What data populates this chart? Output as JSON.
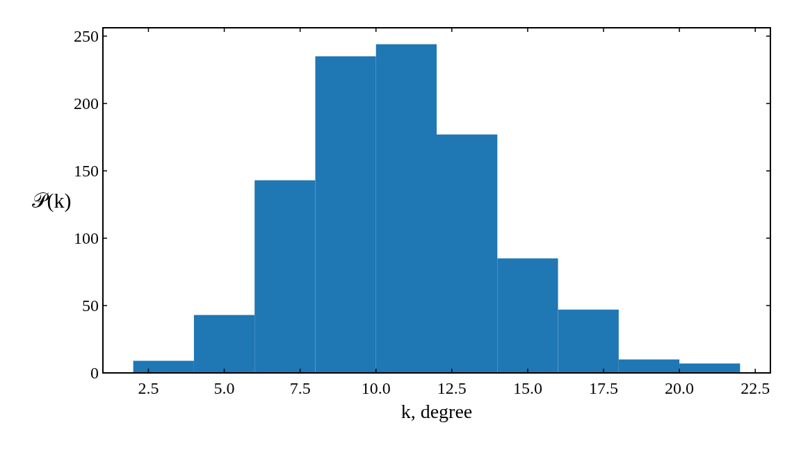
{
  "chart_data": {
    "type": "histogram",
    "xlabel": "k, degree",
    "ylabel": "𝒫(k)",
    "bins": [
      2,
      4,
      6,
      8,
      10,
      12,
      14,
      16,
      18,
      20,
      22
    ],
    "values": [
      9,
      43,
      143,
      235,
      244,
      177,
      85,
      47,
      10,
      7
    ],
    "color": "#1f77b4",
    "xlim": [
      1,
      23
    ],
    "xticks": [
      {
        "value": 2.5,
        "label": "2.5"
      },
      {
        "value": 5,
        "label": "5.0"
      },
      {
        "value": 7.5,
        "label": "7.5"
      },
      {
        "value": 10,
        "label": "10.0"
      },
      {
        "value": 12.5,
        "label": "12.5"
      },
      {
        "value": 15,
        "label": "15.0"
      },
      {
        "value": 17.5,
        "label": "17.5"
      },
      {
        "value": 20,
        "label": "20.0"
      },
      {
        "value": 22.5,
        "label": "22.5"
      }
    ],
    "ylim": [
      0,
      256.2
    ],
    "yticks": [
      0,
      50,
      100,
      150,
      200,
      250
    ],
    "grid": false
  }
}
